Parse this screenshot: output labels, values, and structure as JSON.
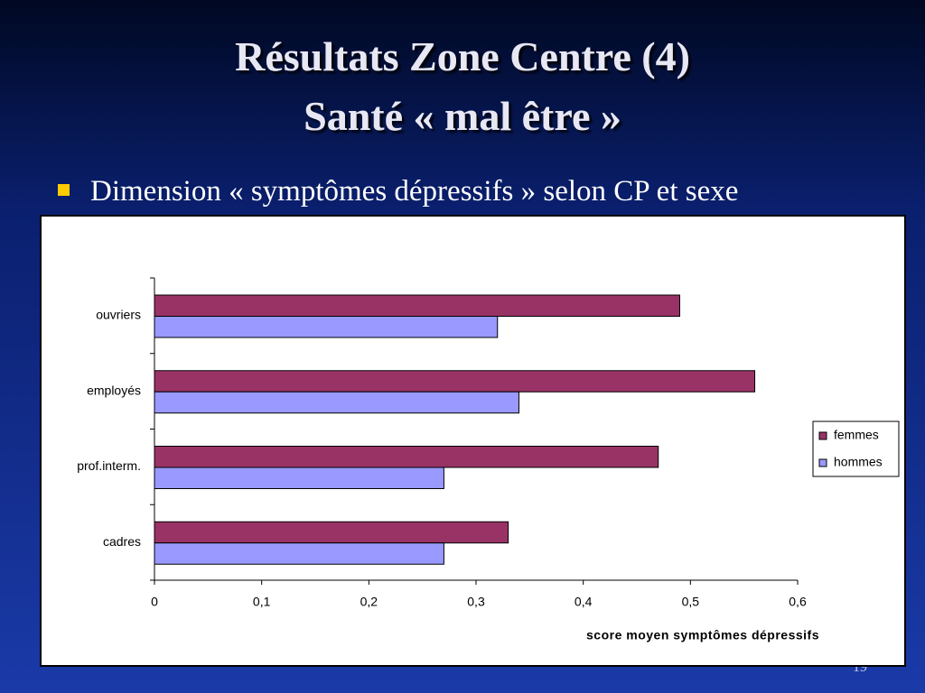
{
  "slide": {
    "title_line1": "Résultats Zone Centre (4)",
    "title_line2": "Santé « mal être »",
    "bullet": "Dimension « symptômes dépressifs » selon CP et sexe",
    "page_number": "19"
  },
  "chart_data": {
    "type": "hbar",
    "categories": [
      "ouvriers",
      "employés",
      "prof.interm.",
      "cadres"
    ],
    "series": [
      {
        "name": "femmes",
        "color": "#993366",
        "values": [
          0.49,
          0.56,
          0.47,
          0.33
        ]
      },
      {
        "name": "hommes",
        "color": "#9999ff",
        "values": [
          0.32,
          0.34,
          0.27,
          0.27
        ]
      }
    ],
    "xlim": [
      0,
      0.6
    ],
    "xticks": [
      0,
      {
        "value": 0.1,
        "label": "0,1"
      },
      {
        "value": 0.2,
        "label": "0,2"
      },
      {
        "value": 0.3,
        "label": "0,3"
      },
      {
        "value": 0.4,
        "label": "0,4"
      },
      {
        "value": 0.5,
        "label": "0,5"
      },
      {
        "value": 0.6,
        "label": "0,6"
      }
    ],
    "x_label": "score moyen symptômes dépressifs",
    "legend": "right",
    "grid": false
  }
}
